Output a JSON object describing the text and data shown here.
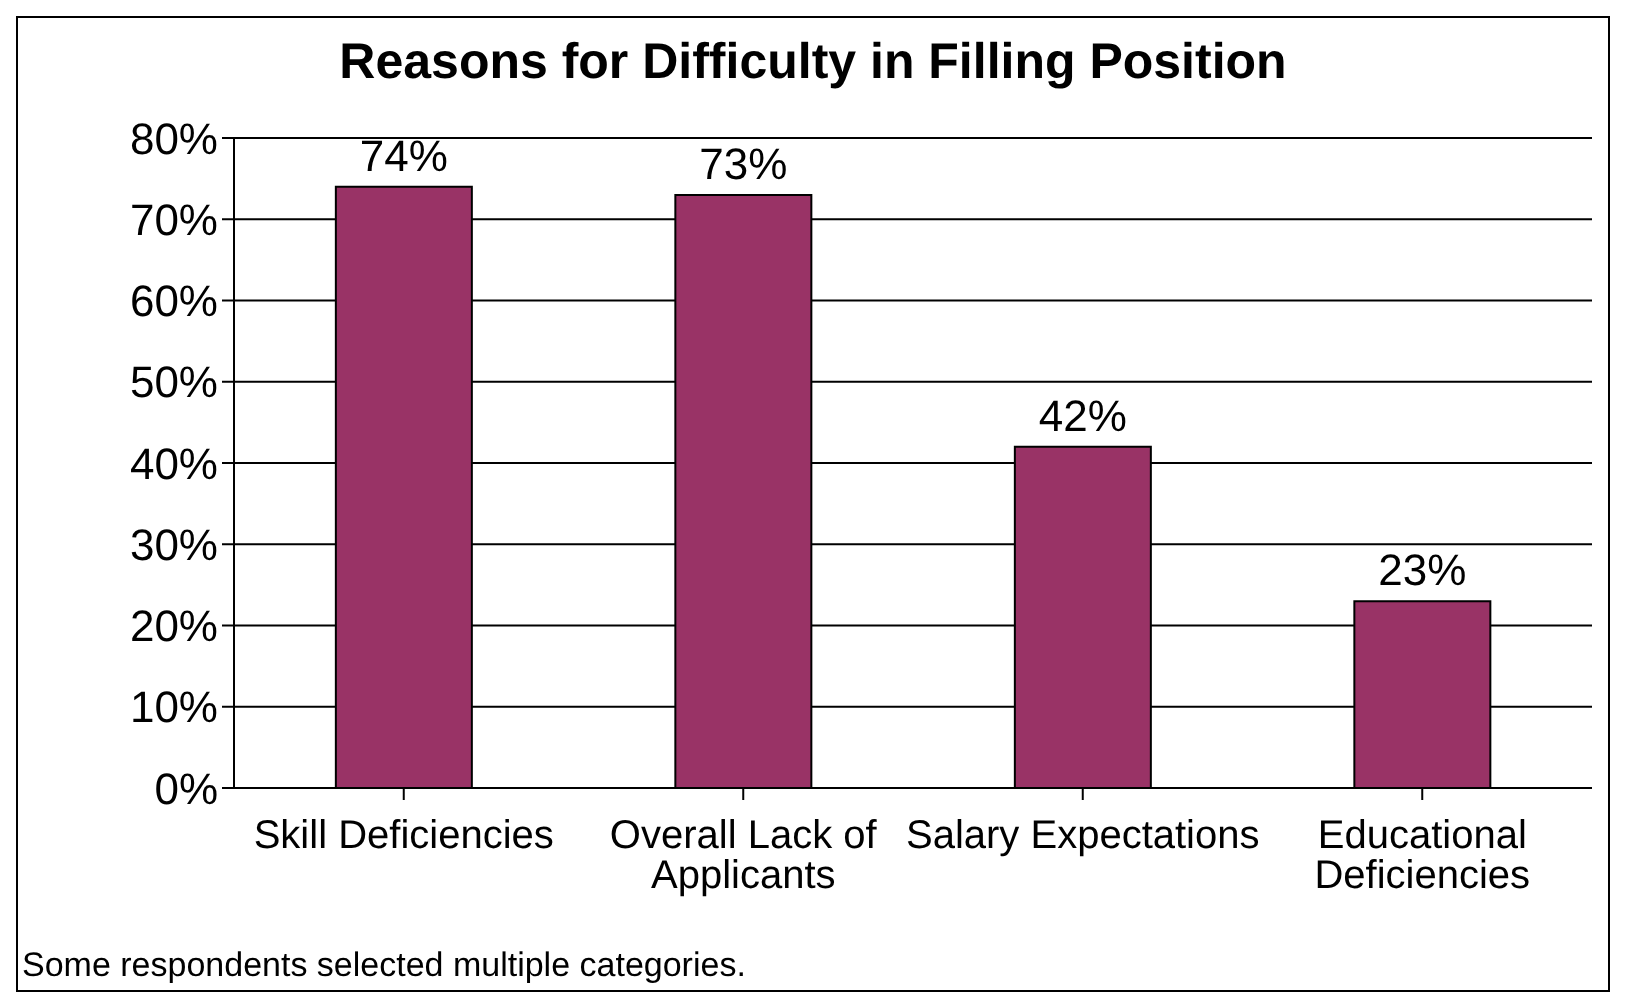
{
  "chart_data": {
    "type": "bar",
    "title": "Reasons for Difficulty in Filling Position",
    "categories": [
      "Skill Deficiencies",
      "Overall Lack of Applicants",
      "Salary Expectations",
      "Educational Deficiencies"
    ],
    "values": [
      74,
      73,
      42,
      23
    ],
    "color": "#993366",
    "value_labels": [
      "74%",
      "73%",
      "42%",
      "23%"
    ],
    "ylim": [
      0,
      80
    ],
    "yticks": [
      {
        "value": 0,
        "label": "0%"
      },
      {
        "value": 10,
        "label": "10%"
      },
      {
        "value": 20,
        "label": "20%"
      },
      {
        "value": 30,
        "label": "30%"
      },
      {
        "value": 40,
        "label": "40%"
      },
      {
        "value": 50,
        "label": "50%"
      },
      {
        "value": 60,
        "label": "60%"
      },
      {
        "value": 70,
        "label": "70%"
      },
      {
        "value": 80,
        "label": "80%"
      }
    ],
    "grid": "y",
    "annotations": [
      "Some respondents selected multiple categories."
    ]
  }
}
